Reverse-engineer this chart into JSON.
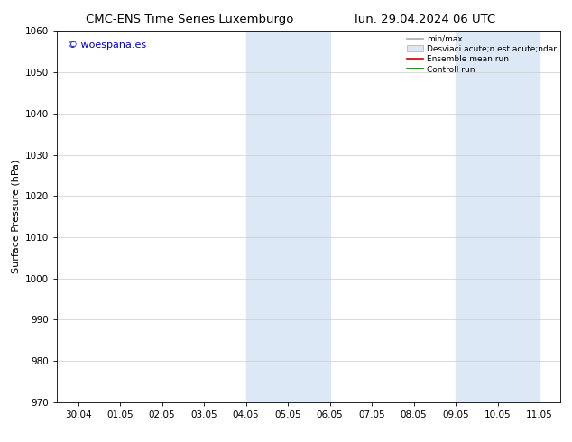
{
  "title_left": "CMC-ENS Time Series Luxemburgo",
  "title_right": "lun. 29.04.2024 06 UTC",
  "ylabel": "Surface Pressure (hPa)",
  "ylim": [
    970,
    1060
  ],
  "yticks": [
    970,
    980,
    990,
    1000,
    1010,
    1020,
    1030,
    1040,
    1050,
    1060
  ],
  "xlabels": [
    "30.04",
    "01.05",
    "02.05",
    "03.05",
    "04.05",
    "05.05",
    "06.05",
    "07.05",
    "08.05",
    "09.05",
    "10.05",
    "11.05"
  ],
  "watermark": "© woespana.es",
  "watermark_color": "#0000cc",
  "shaded_regions": [
    {
      "xstart": 4.0,
      "xend": 6.0,
      "color": "#dce8f5"
    },
    {
      "xstart": 9.0,
      "xend": 11.0,
      "color": "#dce8f5"
    }
  ],
  "legend_line1_label": "min/max",
  "legend_line1_color": "#aaaaaa",
  "legend_patch_label": "Desviaci acute;n est acute;ndar",
  "legend_patch_color": "#dce8f5",
  "legend_line3_label": "Ensemble mean run",
  "legend_line3_color": "#cc0000",
  "legend_line4_label": "Controll run",
  "legend_line4_color": "#007700",
  "background_color": "#ffffff",
  "grid_color": "#cccccc",
  "title_fontsize": 9.5,
  "axis_label_fontsize": 8,
  "tick_fontsize": 7.5,
  "watermark_fontsize": 8,
  "legend_fontsize": 6.5
}
